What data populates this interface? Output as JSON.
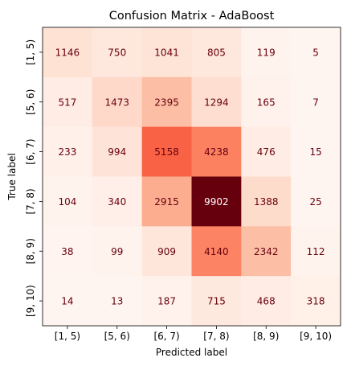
{
  "chart_data": {
    "type": "heatmap",
    "title": "Confusion Matrix - AdaBoost",
    "xlabel": "Predicted label",
    "ylabel": "True label",
    "x_tick_labels": [
      "[1, 5)",
      "[5, 6)",
      "[6, 7)",
      "[7, 8)",
      "[8, 9)",
      "[9, 10)"
    ],
    "y_tick_labels": [
      "[1, 5)",
      "[5, 6)",
      "[6, 7)",
      "[7, 8)",
      "[8, 9)",
      "[9, 10)"
    ],
    "matrix": [
      [
        1146,
        750,
        1041,
        805,
        119,
        5
      ],
      [
        517,
        1473,
        2395,
        1294,
        165,
        7
      ],
      [
        233,
        994,
        5158,
        4238,
        476,
        15
      ],
      [
        104,
        340,
        2915,
        9902,
        1388,
        25
      ],
      [
        38,
        99,
        909,
        4140,
        2342,
        112
      ],
      [
        14,
        13,
        187,
        715,
        468,
        318
      ]
    ],
    "colormap": "Reds",
    "value_range": [
      5,
      9902
    ],
    "grid": false
  },
  "colors": {
    "low": "#fff5f0",
    "high": "#67000d",
    "annotation": "#67000d",
    "annotation_on_dark": "#ffffff"
  }
}
